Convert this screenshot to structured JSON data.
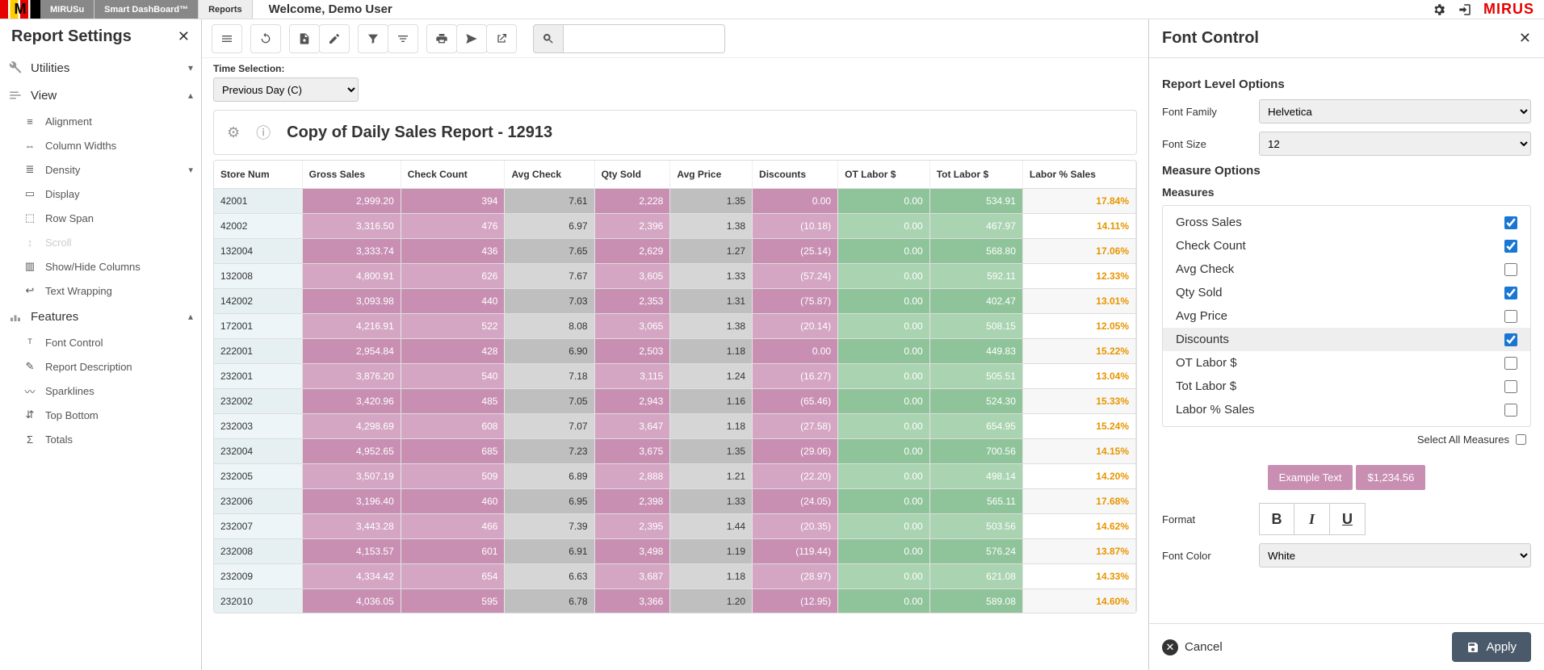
{
  "topbar": {
    "tabs": [
      "MIRUSu",
      "Smart DashBoard™",
      "Reports"
    ],
    "welcome": "Welcome, Demo User",
    "brand": "MIRUS"
  },
  "leftpanel": {
    "title": "Report Settings",
    "sections": {
      "utilities": "Utilities",
      "view": "View",
      "features": "Features"
    },
    "view_items": [
      "Alignment",
      "Column Widths",
      "Density",
      "Display",
      "Row Span",
      "Scroll",
      "Show/Hide Columns",
      "Text Wrapping"
    ],
    "features_items": [
      "Font Control",
      "Report Description",
      "Sparklines",
      "Top Bottom",
      "Totals"
    ]
  },
  "center": {
    "time_label": "Time Selection:",
    "time_value": "Previous Day (C)",
    "report_title": "Copy of Daily Sales Report - 12913",
    "columns": [
      "Store Num",
      "Gross Sales",
      "Check Count",
      "Avg Check",
      "Qty Sold",
      "Avg Price",
      "Discounts",
      "OT Labor $",
      "Tot Labor $",
      "Labor % Sales"
    ],
    "col_classes": [
      "store",
      "pink",
      "pink",
      "grey",
      "pink",
      "grey",
      "pink",
      "green",
      "green",
      "pct"
    ],
    "rows": [
      [
        "42001",
        "2,999.20",
        "394",
        "7.61",
        "2,228",
        "1.35",
        "0.00",
        "0.00",
        "534.91",
        "17.84%"
      ],
      [
        "42002",
        "3,316.50",
        "476",
        "6.97",
        "2,396",
        "1.38",
        "(10.18)",
        "0.00",
        "467.97",
        "14.11%"
      ],
      [
        "132004",
        "3,333.74",
        "436",
        "7.65",
        "2,629",
        "1.27",
        "(25.14)",
        "0.00",
        "568.80",
        "17.06%"
      ],
      [
        "132008",
        "4,800.91",
        "626",
        "7.67",
        "3,605",
        "1.33",
        "(57.24)",
        "0.00",
        "592.11",
        "12.33%"
      ],
      [
        "142002",
        "3,093.98",
        "440",
        "7.03",
        "2,353",
        "1.31",
        "(75.87)",
        "0.00",
        "402.47",
        "13.01%"
      ],
      [
        "172001",
        "4,216.91",
        "522",
        "8.08",
        "3,065",
        "1.38",
        "(20.14)",
        "0.00",
        "508.15",
        "12.05%"
      ],
      [
        "222001",
        "2,954.84",
        "428",
        "6.90",
        "2,503",
        "1.18",
        "0.00",
        "0.00",
        "449.83",
        "15.22%"
      ],
      [
        "232001",
        "3,876.20",
        "540",
        "7.18",
        "3,115",
        "1.24",
        "(16.27)",
        "0.00",
        "505.51",
        "13.04%"
      ],
      [
        "232002",
        "3,420.96",
        "485",
        "7.05",
        "2,943",
        "1.16",
        "(65.46)",
        "0.00",
        "524.30",
        "15.33%"
      ],
      [
        "232003",
        "4,298.69",
        "608",
        "7.07",
        "3,647",
        "1.18",
        "(27.58)",
        "0.00",
        "654.95",
        "15.24%"
      ],
      [
        "232004",
        "4,952.65",
        "685",
        "7.23",
        "3,675",
        "1.35",
        "(29.06)",
        "0.00",
        "700.56",
        "14.15%"
      ],
      [
        "232005",
        "3,507.19",
        "509",
        "6.89",
        "2,888",
        "1.21",
        "(22.20)",
        "0.00",
        "498.14",
        "14.20%"
      ],
      [
        "232006",
        "3,196.40",
        "460",
        "6.95",
        "2,398",
        "1.33",
        "(24.05)",
        "0.00",
        "565.11",
        "17.68%"
      ],
      [
        "232007",
        "3,443.28",
        "466",
        "7.39",
        "2,395",
        "1.44",
        "(20.35)",
        "0.00",
        "503.56",
        "14.62%"
      ],
      [
        "232008",
        "4,153.57",
        "601",
        "6.91",
        "3,498",
        "1.19",
        "(119.44)",
        "0.00",
        "576.24",
        "13.87%"
      ],
      [
        "232009",
        "4,334.42",
        "654",
        "6.63",
        "3,687",
        "1.18",
        "(28.97)",
        "0.00",
        "621.08",
        "14.33%"
      ],
      [
        "232010",
        "4,036.05",
        "595",
        "6.78",
        "3,366",
        "1.20",
        "(12.95)",
        "0.00",
        "589.08",
        "14.60%"
      ]
    ],
    "colors": {
      "pink_odd": "#c88fb3",
      "pink_even": "#d4a6c3",
      "grey_odd": "#bfbfbf",
      "grey_even": "#d6d6d6",
      "green_odd": "#8fc49a",
      "green_even": "#a9d3b1",
      "pct_color": "#e69500"
    }
  },
  "rightpanel": {
    "title": "Font Control",
    "report_level": "Report Level Options",
    "font_family_label": "Font Family",
    "font_family_value": "Helvetica",
    "font_size_label": "Font Size",
    "font_size_value": "12",
    "measure_options": "Measure Options",
    "measures_label": "Measures",
    "measures": [
      {
        "name": "Gross Sales",
        "checked": true
      },
      {
        "name": "Check Count",
        "checked": true
      },
      {
        "name": "Avg Check",
        "checked": false
      },
      {
        "name": "Qty Sold",
        "checked": true
      },
      {
        "name": "Avg Price",
        "checked": false
      },
      {
        "name": "Discounts",
        "checked": true,
        "selected": true
      },
      {
        "name": "OT Labor $",
        "checked": false
      },
      {
        "name": "Tot Labor $",
        "checked": false
      },
      {
        "name": "Labor % Sales",
        "checked": false
      }
    ],
    "select_all": "Select All Measures",
    "example_text": "Example Text",
    "example_value": "$1,234.56",
    "format_label": "Format",
    "font_color_label": "Font Color",
    "font_color_value": "White",
    "cancel": "Cancel",
    "apply": "Apply"
  }
}
